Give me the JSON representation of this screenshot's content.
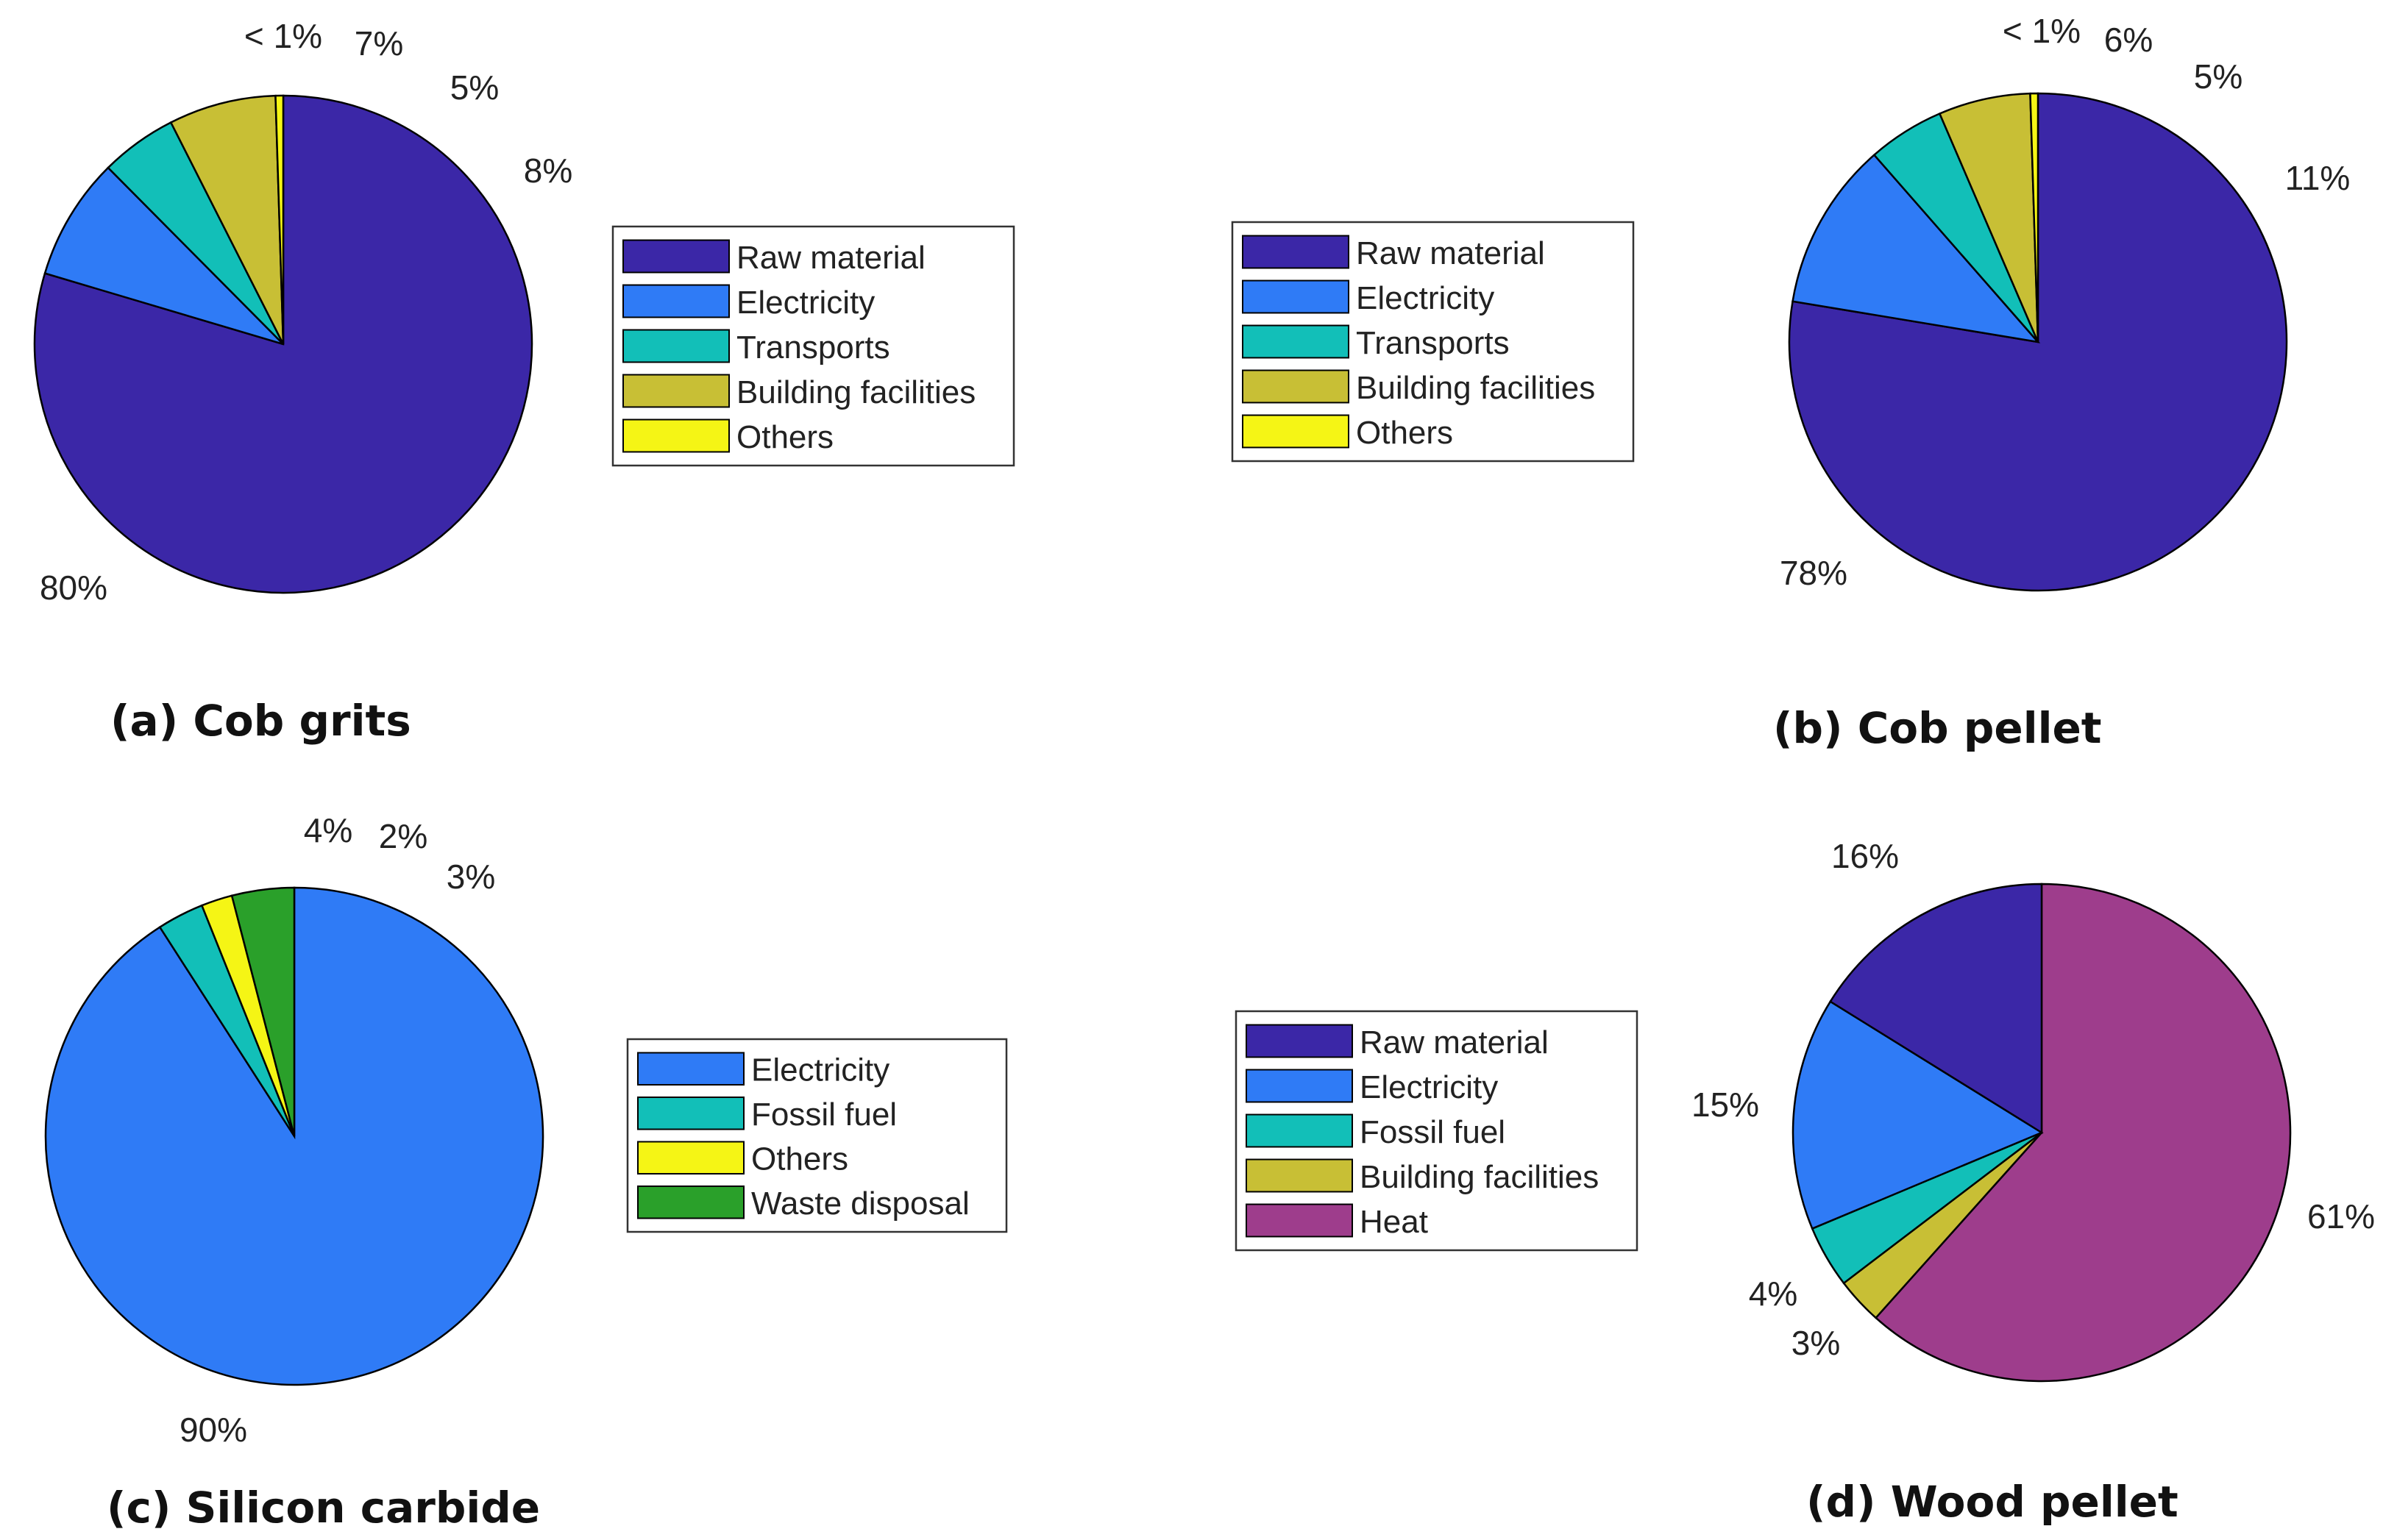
{
  "colors": {
    "raw_material": "#3b27a7",
    "electricity": "#2f7bf6",
    "transports": "#12bfb8",
    "fossil_fuel": "#12bfb8",
    "building_facilities": "#c8bf35",
    "others": "#f5f515",
    "waste_disposal": "#2aa02a",
    "heat": "#9e3d8c",
    "edge": "#000000",
    "text": "#222222"
  },
  "chart_data": [
    {
      "id": "a",
      "type": "pie",
      "title": "(a) Cob grits",
      "legend_position": "right",
      "slices": [
        {
          "label": "Raw material",
          "value": 80,
          "pct_label": "80%",
          "color_key": "raw_material"
        },
        {
          "label": "Electricity",
          "value": 8,
          "pct_label": "8%",
          "color_key": "electricity"
        },
        {
          "label": "Transports",
          "value": 5,
          "pct_label": "5%",
          "color_key": "transports"
        },
        {
          "label": "Building facilities",
          "value": 7,
          "pct_label": "7%",
          "color_key": "building_facilities"
        },
        {
          "label": "Others",
          "value": 0.5,
          "pct_label": "< 1%",
          "color_key": "others"
        }
      ],
      "legend": [
        "Raw material",
        "Electricity",
        "Transports",
        "Building facilities",
        "Others"
      ]
    },
    {
      "id": "b",
      "type": "pie",
      "title": "(b) Cob pellet",
      "legend_position": "left",
      "slices": [
        {
          "label": "Raw material",
          "value": 78,
          "pct_label": "78%",
          "color_key": "raw_material"
        },
        {
          "label": "Electricity",
          "value": 11,
          "pct_label": "11%",
          "color_key": "electricity"
        },
        {
          "label": "Transports",
          "value": 5,
          "pct_label": "5%",
          "color_key": "transports"
        },
        {
          "label": "Building facilities",
          "value": 6,
          "pct_label": "6%",
          "color_key": "building_facilities"
        },
        {
          "label": "Others",
          "value": 0.5,
          "pct_label": "< 1%",
          "color_key": "others"
        }
      ],
      "legend": [
        "Raw material",
        "Electricity",
        "Transports",
        "Building facilities",
        "Others"
      ]
    },
    {
      "id": "c",
      "type": "pie",
      "title": "(c) Silicon carbide",
      "legend_position": "right",
      "slices": [
        {
          "label": "Electricity",
          "value": 90,
          "pct_label": "90%",
          "color_key": "electricity"
        },
        {
          "label": "Fossil fuel",
          "value": 3,
          "pct_label": "3%",
          "color_key": "fossil_fuel"
        },
        {
          "label": "Others",
          "value": 2,
          "pct_label": "2%",
          "color_key": "others"
        },
        {
          "label": "Waste disposal",
          "value": 4,
          "pct_label": "4%",
          "color_key": "waste_disposal"
        }
      ],
      "legend": [
        "Electricity",
        "Fossil fuel",
        "Others",
        "Waste disposal"
      ]
    },
    {
      "id": "d",
      "type": "pie",
      "title": "(d) Wood pellet",
      "legend_position": "left",
      "slices": [
        {
          "label": "Heat",
          "value": 61,
          "pct_label": "61%",
          "color_key": "heat"
        },
        {
          "label": "Building facilities",
          "value": 3,
          "pct_label": "3%",
          "color_key": "building_facilities"
        },
        {
          "label": "Fossil fuel",
          "value": 4,
          "pct_label": "4%",
          "color_key": "fossil_fuel"
        },
        {
          "label": "Electricity",
          "value": 15,
          "pct_label": "15%",
          "color_key": "electricity"
        },
        {
          "label": "Raw material",
          "value": 16,
          "pct_label": "16%",
          "color_key": "raw_material"
        }
      ],
      "legend": [
        "Raw material",
        "Electricity",
        "Fossil fuel",
        "Building facilities",
        "Heat"
      ]
    }
  ]
}
